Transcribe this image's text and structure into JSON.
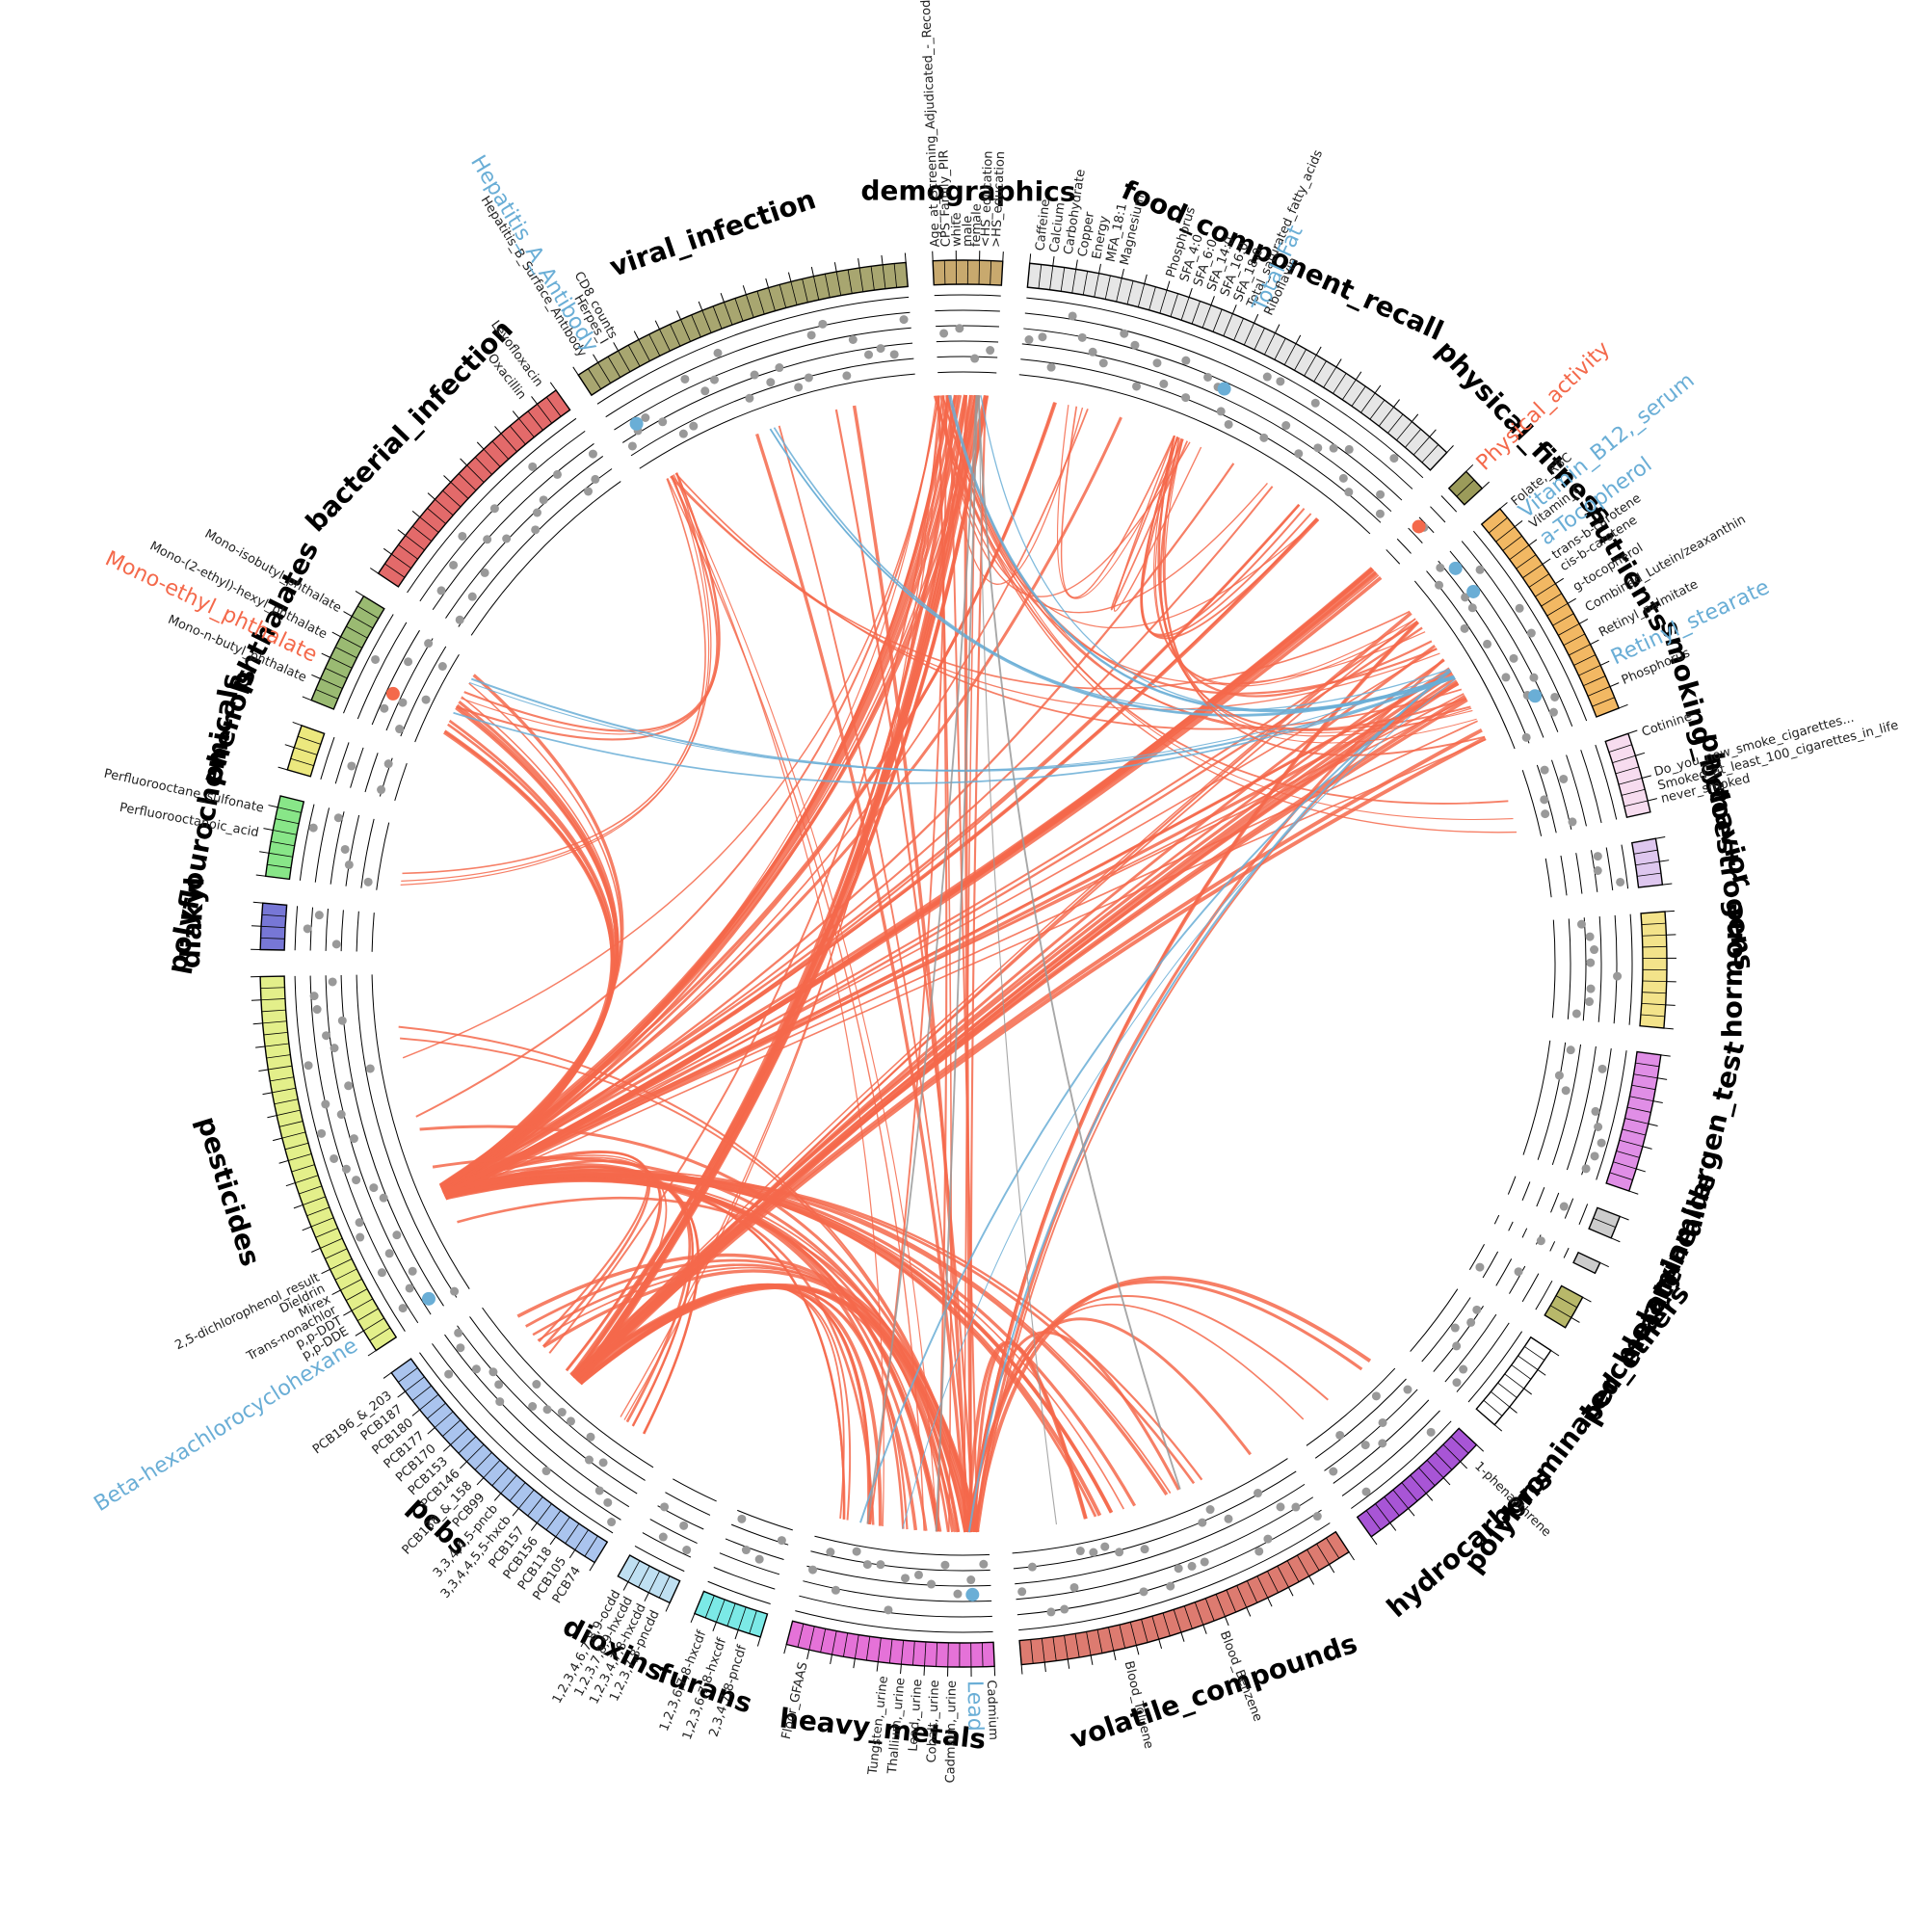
{
  "colors": {
    "positive": "#f4694b",
    "negative": "#6aaed6",
    "other": "#999999",
    "dot": "#999999",
    "ring": "#000000"
  },
  "categories": [
    {
      "name": "demographics",
      "color": "#c8a96e",
      "ticks": 6,
      "span": 6
    },
    {
      "name": "food_component_recall",
      "color": "#e6e6e6",
      "ticks": 40,
      "span": 40
    },
    {
      "name": "physical_fitness",
      "color": "#9b9b5a",
      "ticks": 2,
      "span": 2
    },
    {
      "name": "nutrients",
      "color": "#f2b863",
      "ticks": 20,
      "span": 20
    },
    {
      "name": "smoking_behavior",
      "color": "#f7dcef",
      "ticks": 7,
      "span": 7
    },
    {
      "name": "phytoestrogens",
      "color": "#dec7ef",
      "ticks": 4,
      "span": 4
    },
    {
      "name": "hormone",
      "color": "#f3e38a",
      "ticks": 10,
      "span": 10
    },
    {
      "name": "allergen_test",
      "color": "#e08ee6",
      "ticks": 12,
      "span": 12
    },
    {
      "name": "acrylamide",
      "color": "#cccccc",
      "ticks": 2,
      "span": 2
    },
    {
      "name": "melamine",
      "color": "#cccccc",
      "ticks": 1,
      "span": 1
    },
    {
      "name": "perchlorate",
      "color": "#b8b86a",
      "ticks": 3,
      "span": 3
    },
    {
      "name": "polybrominated_ethers",
      "color": "#ffffff",
      "ticks": 8,
      "span": 8
    },
    {
      "name": "hydrocarbons",
      "color": "#a855d6",
      "ticks": 12,
      "span": 12
    },
    {
      "name": "volatile_compounds",
      "color": "#dd7b70",
      "ticks": 30,
      "span": 30
    },
    {
      "name": "heavy_metals",
      "color": "#e572d8",
      "ticks": 18,
      "span": 18
    },
    {
      "name": "furans",
      "color": "#7be9e6",
      "ticks": 6,
      "span": 6
    },
    {
      "name": "dioxins",
      "color": "#bfe0f2",
      "ticks": 5,
      "span": 5
    },
    {
      "name": "pcbs",
      "color": "#aac4ee",
      "ticks": 24,
      "span": 24
    },
    {
      "name": "pesticides",
      "color": "#e3ef8a",
      "ticks": 34,
      "span": 34
    },
    {
      "name": "diakyl",
      "color": "#7777d6",
      "ticks": 4,
      "span": 4
    },
    {
      "name": "polyflourochemicals",
      "color": "#88e688",
      "ticks": 7,
      "span": 7
    },
    {
      "name": "phenols",
      "color": "#ece87e",
      "ticks": 4,
      "span": 4
    },
    {
      "name": "phthalates",
      "color": "#9aba72",
      "ticks": 10,
      "span": 10
    },
    {
      "name": "bacterial_infection",
      "color": "#e36a6a",
      "ticks": 22,
      "span": 22
    },
    {
      "name": "viral_infection",
      "color": "#a8a670",
      "ticks": 30,
      "span": 30
    }
  ],
  "labels": [
    {
      "cat": "demographics",
      "pos": 0.05,
      "text": "Age_at_Screening_Adjudicated_-_Recode",
      "style": ""
    },
    {
      "cat": "demographics",
      "pos": 0.2,
      "text": "CPS_Family_PIR",
      "style": ""
    },
    {
      "cat": "demographics",
      "pos": 0.35,
      "text": "white",
      "style": ""
    },
    {
      "cat": "demographics",
      "pos": 0.5,
      "text": "male",
      "style": ""
    },
    {
      "cat": "demographics",
      "pos": 0.62,
      "text": "female",
      "style": ""
    },
    {
      "cat": "demographics",
      "pos": 0.75,
      "text": "<HS_education",
      "style": ""
    },
    {
      "cat": "demographics",
      "pos": 0.9,
      "text": ">HS_education",
      "style": ""
    },
    {
      "cat": "food_component_recall",
      "pos": 0.02,
      "text": "Caffeine",
      "style": ""
    },
    {
      "cat": "food_component_recall",
      "pos": 0.05,
      "text": "Calcium",
      "style": ""
    },
    {
      "cat": "food_component_recall",
      "pos": 0.08,
      "text": "Carbohydrate",
      "style": ""
    },
    {
      "cat": "food_component_recall",
      "pos": 0.11,
      "text": "Copper",
      "style": ""
    },
    {
      "cat": "food_component_recall",
      "pos": 0.14,
      "text": "Energy",
      "style": ""
    },
    {
      "cat": "food_component_recall",
      "pos": 0.17,
      "text": "MFA_18:1",
      "style": ""
    },
    {
      "cat": "food_component_recall",
      "pos": 0.2,
      "text": "Magnesium",
      "style": ""
    },
    {
      "cat": "food_component_recall",
      "pos": 0.3,
      "text": "Phosphorus",
      "style": ""
    },
    {
      "cat": "food_component_recall",
      "pos": 0.33,
      "text": "SFA_4:0",
      "style": ""
    },
    {
      "cat": "food_component_recall",
      "pos": 0.36,
      "text": "SFA_6:0",
      "style": ""
    },
    {
      "cat": "food_component_recall",
      "pos": 0.39,
      "text": "SFA_14:0",
      "style": ""
    },
    {
      "cat": "food_component_recall",
      "pos": 0.42,
      "text": "SFA_16:0",
      "style": ""
    },
    {
      "cat": "food_component_recall",
      "pos": 0.45,
      "text": "SFA_18:0",
      "style": ""
    },
    {
      "cat": "food_component_recall",
      "pos": 0.48,
      "text": "Total_saturated_fatty_acids",
      "style": ""
    },
    {
      "cat": "food_component_recall",
      "pos": 0.5,
      "text": "Total_Fat",
      "style": "hl-blue"
    },
    {
      "cat": "food_component_recall",
      "pos": 0.52,
      "text": "Riboflavin",
      "style": ""
    },
    {
      "cat": "physical_fitness",
      "pos": 0.3,
      "text": "Physical_activity",
      "style": "hl-red"
    },
    {
      "cat": "nutrients",
      "pos": 0.02,
      "text": "Folate,_RBC",
      "style": ""
    },
    {
      "cat": "nutrients",
      "pos": 0.08,
      "text": "Vitamin_B12,_serum",
      "style": "hl-blue"
    },
    {
      "cat": "nutrients",
      "pos": 0.14,
      "text": "Vitamin_C",
      "style": ""
    },
    {
      "cat": "nutrients",
      "pos": 0.22,
      "text": "a-Tocopherol",
      "style": "hl-blue"
    },
    {
      "cat": "nutrients",
      "pos": 0.3,
      "text": "trans-b-carotene",
      "style": ""
    },
    {
      "cat": "nutrients",
      "pos": 0.36,
      "text": "cis-b-carotene",
      "style": ""
    },
    {
      "cat": "nutrients",
      "pos": 0.46,
      "text": "g-tocopherol",
      "style": ""
    },
    {
      "cat": "nutrients",
      "pos": 0.56,
      "text": "Combined_Lutein/zeaxanthin",
      "style": ""
    },
    {
      "cat": "nutrients",
      "pos": 0.68,
      "text": "Retinyl_palmitate",
      "style": ""
    },
    {
      "cat": "nutrients",
      "pos": 0.8,
      "text": "Retinyl_stearate",
      "style": "hl-blue"
    },
    {
      "cat": "nutrients",
      "pos": 0.9,
      "text": "Phosphorus",
      "style": ""
    },
    {
      "cat": "smoking_behavior",
      "pos": 0.05,
      "text": "Cotinine",
      "style": ""
    },
    {
      "cat": "smoking_behavior",
      "pos": 0.55,
      "text": "Do_you_now_smoke_cigarettes...",
      "style": ""
    },
    {
      "cat": "smoking_behavior",
      "pos": 0.72,
      "text": "Smoked_at_least_100_cigarettes_in_life",
      "style": ""
    },
    {
      "cat": "smoking_behavior",
      "pos": 0.88,
      "text": "never_smoked",
      "style": ""
    },
    {
      "cat": "hydrocarbons",
      "pos": 0.1,
      "text": "1-phenanthrene",
      "style": ""
    },
    {
      "cat": "volatile_compounds",
      "pos": 0.42,
      "text": "Blood_Benzene",
      "style": ""
    },
    {
      "cat": "volatile_compounds",
      "pos": 0.7,
      "text": "Blood_Toluene",
      "style": ""
    },
    {
      "cat": "heavy_metals",
      "pos": 0.02,
      "text": "Cadmium",
      "style": ""
    },
    {
      "cat": "heavy_metals",
      "pos": 0.1,
      "text": "Lead",
      "style": "hl-blue"
    },
    {
      "cat": "heavy_metals",
      "pos": 0.2,
      "text": "Cadmium,_urine",
      "style": ""
    },
    {
      "cat": "heavy_metals",
      "pos": 0.28,
      "text": "Cobalt,_urine",
      "style": ""
    },
    {
      "cat": "heavy_metals",
      "pos": 0.36,
      "text": "Lead,_urine",
      "style": ""
    },
    {
      "cat": "heavy_metals",
      "pos": 0.44,
      "text": "Thallium,_urine",
      "style": ""
    },
    {
      "cat": "heavy_metals",
      "pos": 0.52,
      "text": "Tungsten,_urine",
      "style": ""
    },
    {
      "cat": "heavy_metals",
      "pos": 0.9,
      "text": "Floor_GFAAS",
      "style": ""
    },
    {
      "cat": "furans",
      "pos": 0.2,
      "text": "2,3,4,7,8-pncdf",
      "style": ""
    },
    {
      "cat": "furans",
      "pos": 0.5,
      "text": "1,2,3,6,7,8-hxcdf",
      "style": ""
    },
    {
      "cat": "furans",
      "pos": 0.8,
      "text": "1,2,3,6,7,8-hxcdf",
      "style": ""
    },
    {
      "cat": "dioxins",
      "pos": 0.15,
      "text": "1,2,3,7,8-pncdd",
      "style": ""
    },
    {
      "cat": "dioxins",
      "pos": 0.4,
      "text": "1,2,3,4,7,8-hxcdd",
      "style": ""
    },
    {
      "cat": "dioxins",
      "pos": 0.65,
      "text": "1,2,3,7,8,9-hxcdd",
      "style": ""
    },
    {
      "cat": "dioxins",
      "pos": 0.88,
      "text": "1,2,3,4,6,7,8,9-ocdd",
      "style": ""
    },
    {
      "cat": "pcbs",
      "pos": 0.04,
      "text": "PCB74",
      "style": ""
    },
    {
      "cat": "pcbs",
      "pos": 0.1,
      "text": "PCB105",
      "style": ""
    },
    {
      "cat": "pcbs",
      "pos": 0.16,
      "text": "PCB118",
      "style": ""
    },
    {
      "cat": "pcbs",
      "pos": 0.22,
      "text": "PCB156",
      "style": ""
    },
    {
      "cat": "pcbs",
      "pos": 0.28,
      "text": "PCB157",
      "style": ""
    },
    {
      "cat": "pcbs",
      "pos": 0.34,
      "text": "3,3,4,4,5,5-hxcb",
      "style": ""
    },
    {
      "cat": "pcbs",
      "pos": 0.4,
      "text": "3,3,4,4,5-pncb",
      "style": ""
    },
    {
      "cat": "pcbs",
      "pos": 0.46,
      "text": "PCB99",
      "style": ""
    },
    {
      "cat": "pcbs",
      "pos": 0.52,
      "text": "PCB138_&_158",
      "style": ""
    },
    {
      "cat": "pcbs",
      "pos": 0.58,
      "text": "PCB146",
      "style": ""
    },
    {
      "cat": "pcbs",
      "pos": 0.64,
      "text": "PCB153",
      "style": ""
    },
    {
      "cat": "pcbs",
      "pos": 0.7,
      "text": "PCB170",
      "style": ""
    },
    {
      "cat": "pcbs",
      "pos": 0.76,
      "text": "PCB177",
      "style": ""
    },
    {
      "cat": "pcbs",
      "pos": 0.82,
      "text": "PCB180",
      "style": ""
    },
    {
      "cat": "pcbs",
      "pos": 0.88,
      "text": "PCB187",
      "style": ""
    },
    {
      "cat": "pcbs",
      "pos": 0.94,
      "text": "PCB196_&_203",
      "style": ""
    },
    {
      "cat": "pesticides",
      "pos": 0.04,
      "text": "Beta-hexachlorocyclohexane",
      "style": "hl-blue"
    },
    {
      "cat": "pesticides",
      "pos": 0.08,
      "text": "p,p-DDE",
      "style": ""
    },
    {
      "cat": "pesticides",
      "pos": 0.11,
      "text": "p,p-DDT",
      "style": ""
    },
    {
      "cat": "pesticides",
      "pos": 0.14,
      "text": "Trans-nonachlor",
      "style": ""
    },
    {
      "cat": "pesticides",
      "pos": 0.17,
      "text": "Mirex",
      "style": ""
    },
    {
      "cat": "pesticides",
      "pos": 0.2,
      "text": "Dieldrin",
      "style": ""
    },
    {
      "cat": "pesticides",
      "pos": 0.23,
      "text": "2,5-dichlorophenol_result",
      "style": ""
    },
    {
      "cat": "polyflourochemicals",
      "pos": 0.5,
      "text": "Perfluorooctanoic_acid",
      "style": ""
    },
    {
      "cat": "polyflourochemicals",
      "pos": 0.8,
      "text": "Perfluorooctane_sulfonate",
      "style": ""
    },
    {
      "cat": "phthalates",
      "pos": 0.15,
      "text": "Mono-n-butyl_phthalate",
      "style": ""
    },
    {
      "cat": "phthalates",
      "pos": 0.35,
      "text": "Mono-ethyl_phthalate",
      "style": "hl-red"
    },
    {
      "cat": "phthalates",
      "pos": 0.55,
      "text": "Mono-(2-ethyl)-hexyl_phthalate",
      "style": ""
    },
    {
      "cat": "phthalates",
      "pos": 0.8,
      "text": "Mono-isobutyl_phthalate",
      "style": ""
    },
    {
      "cat": "bacterial_infection",
      "pos": 0.88,
      "text": "Oxacillin",
      "style": ""
    },
    {
      "cat": "bacterial_infection",
      "pos": 0.96,
      "text": "Levofloxacin",
      "style": ""
    },
    {
      "cat": "viral_infection",
      "pos": 0.04,
      "text": "Hepatitis_B_Surface_Antibody",
      "style": ""
    },
    {
      "cat": "viral_infection",
      "pos": 0.07,
      "text": "Hepatitis_A_Antibody",
      "style": "hl-blue"
    },
    {
      "cat": "viral_infection",
      "pos": 0.11,
      "text": "Herpes_I",
      "style": ""
    },
    {
      "cat": "viral_infection",
      "pos": 0.14,
      "text": "CD8_counts",
      "style": ""
    }
  ],
  "hubs": [
    {
      "cat": "pesticides",
      "pos": 0.3,
      "color": "positive",
      "edges": 80,
      "targets": [
        "nutrients",
        "food_component_recall",
        "heavy_metals",
        "demographics",
        "volatile_compounds",
        "physical_fitness",
        "phthalates",
        "pcbs"
      ]
    },
    {
      "cat": "demographics",
      "pos": 0.05,
      "color": "positive",
      "edges": 20,
      "targets": [
        "nutrients",
        "food_component_recall",
        "pcbs",
        "pesticides",
        "heavy_metals",
        "smoking_behavior"
      ]
    },
    {
      "cat": "heavy_metals",
      "pos": 0.1,
      "color": "positive",
      "edges": 30,
      "targets": [
        "pesticides",
        "pcbs",
        "viral_infection",
        "demographics",
        "nutrients",
        "hydrocarbons",
        "volatile_compounds"
      ]
    },
    {
      "cat": "pcbs",
      "pos": 0.5,
      "color": "positive",
      "edges": 40,
      "targets": [
        "nutrients",
        "demographics",
        "heavy_metals"
      ]
    },
    {
      "cat": "viral_infection",
      "pos": 0.08,
      "color": "positive",
      "edges": 12,
      "targets": [
        "nutrients",
        "polyflourochemicals",
        "heavy_metals",
        "phthalates"
      ]
    },
    {
      "cat": "nutrients",
      "pos": 0.5,
      "color": "negative",
      "edges": 12,
      "targets": [
        "phthalates",
        "demographics",
        "heavy_metals",
        "viral_infection"
      ]
    },
    {
      "cat": "food_component_recall",
      "pos": 0.45,
      "color": "positive",
      "edges": 14,
      "targets": [
        "food_component_recall",
        "nutrients"
      ]
    },
    {
      "cat": "demographics",
      "pos": 0.6,
      "color": "other",
      "edges": 4,
      "targets": [
        "heavy_metals",
        "volatile_compounds"
      ]
    }
  ]
}
